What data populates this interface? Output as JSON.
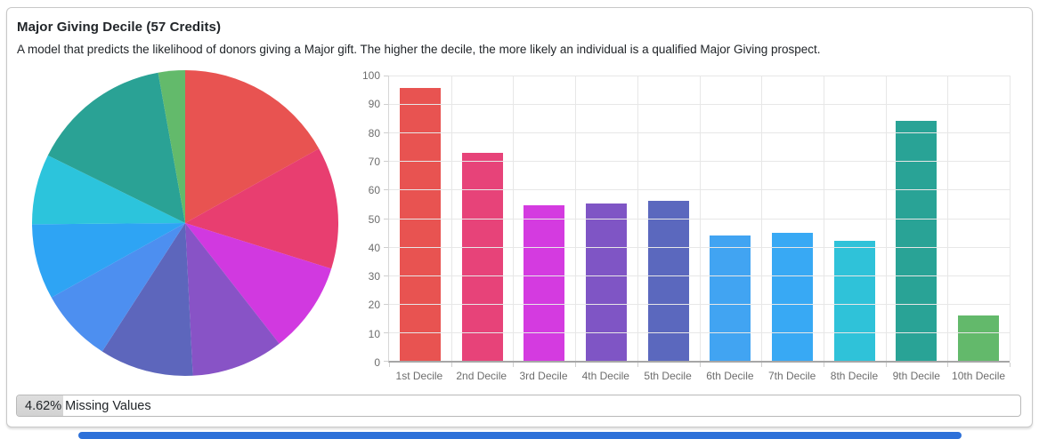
{
  "card": {
    "title": "Major Giving Decile (57 Credits)",
    "subtitle": "A model that predicts the likelihood of donors giving a Major gift. The higher the decile, the more likely an individual is a qualified Major Giving prospect.",
    "footer": {
      "percent_label": "4.62%",
      "text_label": "Missing Values",
      "percent_value": 4.62
    }
  },
  "chart_data": [
    {
      "type": "pie",
      "title": "",
      "categories": [
        "1st Decile",
        "2nd Decile",
        "3rd Decile",
        "4th Decile",
        "5th Decile",
        "6th Decile",
        "7th Decile",
        "8th Decile",
        "9th Decile",
        "10th Decile"
      ],
      "values": [
        95.5,
        73,
        54.5,
        55,
        56,
        44,
        45,
        42,
        84,
        16
      ],
      "colors": [
        "#E85351",
        "#E83E70",
        "#D139E0",
        "#8853C6",
        "#5D66BC",
        "#4D8FF0",
        "#2EA4F4",
        "#2CC4DC",
        "#2AA295",
        "#63BA6B"
      ],
      "start_angle_deg": 0,
      "direction": "clockwise",
      "legend_position": "none"
    },
    {
      "type": "bar",
      "title": "",
      "xlabel": "",
      "ylabel": "",
      "categories": [
        "1st Decile",
        "2nd Decile",
        "3rd Decile",
        "4th Decile",
        "5th Decile",
        "6th Decile",
        "7th Decile",
        "8th Decile",
        "9th Decile",
        "10th Decile"
      ],
      "values": [
        95.5,
        73,
        54.5,
        55,
        56,
        44,
        45,
        42,
        84,
        16
      ],
      "colors": [
        "#E85351",
        "#E74379",
        "#D43BE0",
        "#7F55C5",
        "#5B68BE",
        "#41A4F2",
        "#38A9F4",
        "#2FC2D9",
        "#29A396",
        "#63B96B"
      ],
      "ylim": [
        0,
        100
      ],
      "yticks": [
        0,
        10,
        20,
        30,
        40,
        50,
        60,
        70,
        80,
        90,
        100
      ],
      "grid": true,
      "legend_position": "none"
    }
  ],
  "colors": {
    "scrollbar_blue": "#2E71D9",
    "grid_line": "#e7e7e7",
    "tick_text": "#6d6d6d",
    "body_text": "#212529",
    "card_border": "#c8c8c8"
  }
}
